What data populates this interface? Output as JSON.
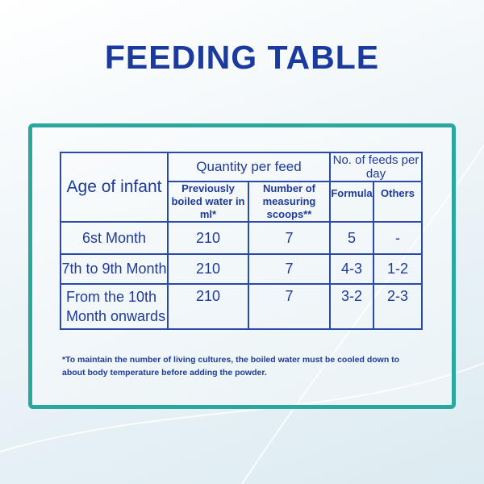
{
  "title": "FEEDING TABLE",
  "table": {
    "age_header": "Age of infant",
    "quantity_header": "Quantity per feed",
    "feeds_header": "No. of feeds per day",
    "sub_headers": [
      "Previously boiled water in ml*",
      "Number of measuring scoops**",
      "Formula",
      "Others"
    ],
    "rows": [
      {
        "age": "6st Month",
        "water": "210",
        "scoops": "7",
        "formula": "5",
        "others": "-"
      },
      {
        "age": "7th to 9th Month",
        "water": "210",
        "scoops": "7",
        "formula": "4-3",
        "others": "1-2"
      },
      {
        "age": "From the 10th Month onwards",
        "water": "210",
        "scoops": "7",
        "formula": "3-2",
        "others": "2-3"
      }
    ]
  },
  "footnote": "*To maintain the number of living cultures, the boiled water must be cooled down to about body temperature  before adding the powder.",
  "colors": {
    "title": "#1b3a9e",
    "frame": "#2aa89f",
    "table_border": "#2a4aa8"
  }
}
